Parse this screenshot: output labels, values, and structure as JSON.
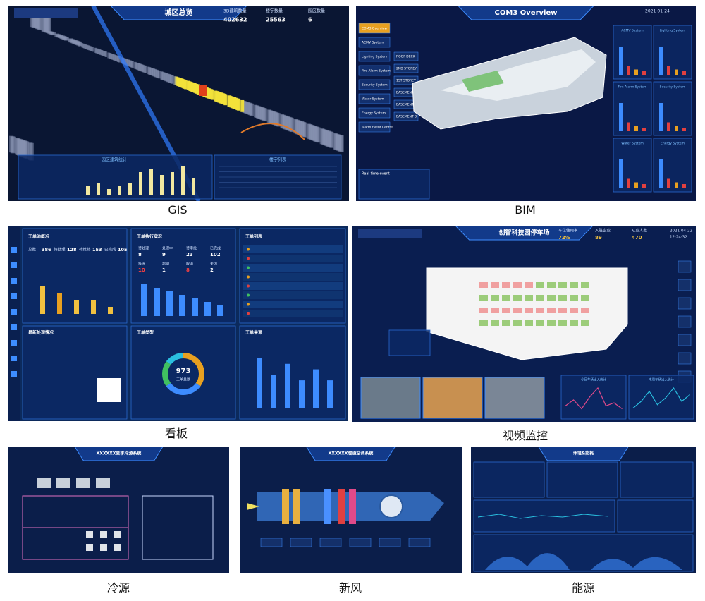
{
  "gis": {
    "caption": "GIS",
    "title": "城区总览",
    "stats": [
      {
        "label": "3D建筑数量",
        "value": "402632"
      },
      {
        "label": "楼宇数量",
        "value": "25563"
      },
      {
        "label": "园区数量",
        "value": "6"
      }
    ],
    "chart_title": "园区建筑统计",
    "bars": [
      3,
      4,
      2,
      3,
      4,
      8,
      9,
      7,
      8,
      10,
      6
    ],
    "table_title": "楼宇列表"
  },
  "bim": {
    "caption": "BIM",
    "title": "COM3 Overview",
    "date": "2021-01-24",
    "menu": [
      "COM3 Overview",
      "ACMV System",
      "Lighting System",
      "Fire Alarm System",
      "Security System",
      "Water System",
      "Energy System",
      "Alarm Event Centre"
    ],
    "floors": [
      "ROOF DECK",
      "2ND STOREY",
      "1ST STOREY",
      "BASEMENT 1",
      "BASEMENT 2",
      "BASEMENT 3"
    ],
    "cards": [
      "ACMV System",
      "Lighting System",
      "Fire Alarm System",
      "Security System",
      "Water System",
      "Energy System"
    ],
    "event_title": "Real-time event"
  },
  "kanban": {
    "caption": "看板",
    "pool": {
      "title": "工单池概况",
      "items": [
        {
          "label": "总数",
          "value": 386
        },
        {
          "label": "待处理",
          "value": 128
        },
        {
          "label": "待维修",
          "value": 153
        },
        {
          "label": "已完成",
          "value": 105
        }
      ],
      "bars": [
        8,
        6,
        4,
        4,
        2
      ]
    },
    "exec": {
      "title": "工单执行实况",
      "items": [
        {
          "label": "待处理",
          "value": 8
        },
        {
          "label": "处理中",
          "value": 9
        },
        {
          "label": "待审批",
          "value": 23
        },
        {
          "label": "已完成",
          "value": 102
        },
        {
          "label": "挂停",
          "value": 10
        },
        {
          "label": "超期",
          "value": 1
        },
        {
          "label": "取消",
          "value": 8
        },
        {
          "label": "关闭",
          "value": 2
        }
      ],
      "bars": [
        9,
        8,
        7,
        6,
        5,
        4,
        3
      ]
    },
    "list_title": "工单列表",
    "latest_title": "最新处理情况",
    "type": {
      "title": "工单类型",
      "total": 973,
      "total_label": "工单总数"
    },
    "source": {
      "title": "工单来源",
      "bars": [
        9,
        6,
        8,
        5,
        7,
        5
      ]
    }
  },
  "video": {
    "caption": "视频监控",
    "title": "创智科技园停车场",
    "stats": [
      {
        "label": "车位使用率",
        "value": "72%"
      },
      {
        "label": "入驻企业",
        "value": "89"
      },
      {
        "label": "从业人数",
        "value": "470"
      }
    ],
    "date": "2021-04-22",
    "time": "12:24:32",
    "charts": [
      {
        "title": "今日车辆出入统计",
        "values": [
          3,
          5,
          2,
          6,
          9,
          3,
          4,
          2
        ]
      },
      {
        "title": "本周车辆出入统计",
        "values": [
          2,
          4,
          7,
          3,
          5,
          8,
          4,
          6
        ]
      }
    ]
  },
  "cold": {
    "caption": "冷源",
    "title": "XXXXXX夏季冷源系统"
  },
  "fresh": {
    "caption": "新风",
    "title": "XXXXXX暖通空调系统"
  },
  "energy": {
    "caption": "能源",
    "title": "环境&能耗"
  }
}
